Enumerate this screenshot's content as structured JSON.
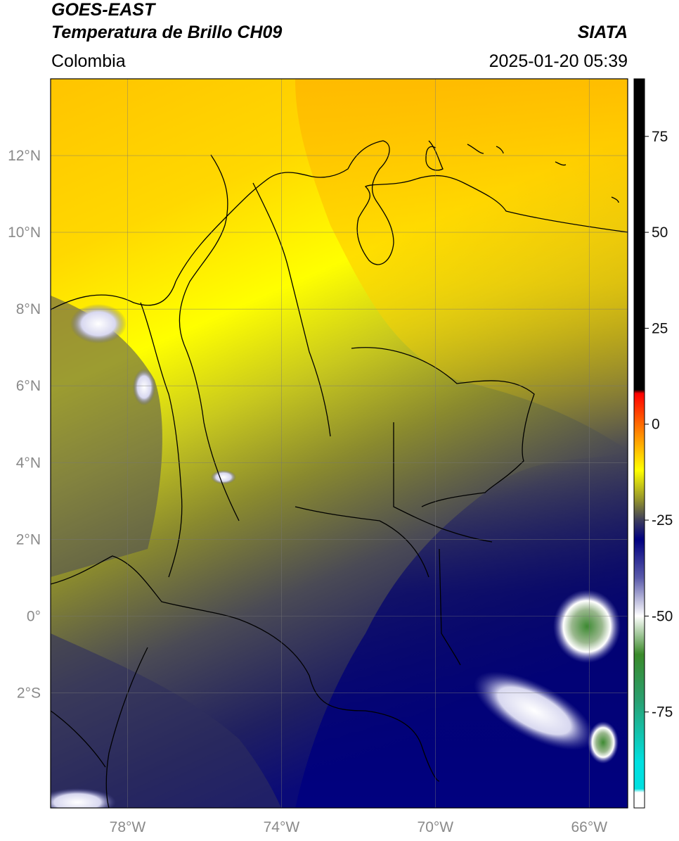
{
  "header": {
    "satellite": "GOES-EAST",
    "product": "Temperatura de Brillo CH09",
    "source": "SIATA",
    "region": "Colombia",
    "datetime": "2025-01-20 05:39"
  },
  "map": {
    "lat_ticks": [
      {
        "value": 12,
        "label": "12°N"
      },
      {
        "value": 10,
        "label": "10°N"
      },
      {
        "value": 8,
        "label": "8°N"
      },
      {
        "value": 6,
        "label": "6°N"
      },
      {
        "value": 4,
        "label": "4°N"
      },
      {
        "value": 2,
        "label": "2°N"
      },
      {
        "value": 0,
        "label": "0°"
      },
      {
        "value": -2,
        "label": "2°S"
      }
    ],
    "lon_ticks": [
      {
        "value": -78,
        "label": "78°W"
      },
      {
        "value": -74,
        "label": "74°W"
      },
      {
        "value": -70,
        "label": "70°W"
      },
      {
        "value": -66,
        "label": "66°W"
      }
    ],
    "lon_range": [
      -80,
      -65
    ],
    "lat_range": [
      -5,
      14
    ]
  },
  "colorbar": {
    "ticks": [
      {
        "value": 75,
        "label": "75"
      },
      {
        "value": 50,
        "label": "50"
      },
      {
        "value": 25,
        "label": "25"
      },
      {
        "value": 0,
        "label": "0"
      },
      {
        "value": -25,
        "label": "-25"
      },
      {
        "value": -50,
        "label": "-50"
      },
      {
        "value": -75,
        "label": "-75"
      }
    ],
    "range": [
      -100,
      90
    ],
    "stops": [
      {
        "value": 90,
        "color": "#000000"
      },
      {
        "value": 9,
        "color": "#000000"
      },
      {
        "value": 8,
        "color": "#ff0000"
      },
      {
        "value": 0,
        "color": "#ff6a00"
      },
      {
        "value": -8,
        "color": "#ffcf00"
      },
      {
        "value": -12,
        "color": "#ffff00"
      },
      {
        "value": -20,
        "color": "#8e8e2e"
      },
      {
        "value": -25,
        "color": "#3d3d5c"
      },
      {
        "value": -30,
        "color": "#00007f"
      },
      {
        "value": -40,
        "color": "#5a5aaa"
      },
      {
        "value": -50,
        "color": "#ffffff"
      },
      {
        "value": -60,
        "color": "#3a8a2a"
      },
      {
        "value": -72,
        "color": "#2aa070"
      },
      {
        "value": -88,
        "color": "#00e0e0"
      },
      {
        "value": -95,
        "color": "#00e0e0"
      },
      {
        "value": -96,
        "color": "#ffffff"
      },
      {
        "value": -100,
        "color": "#ffffff"
      }
    ]
  }
}
